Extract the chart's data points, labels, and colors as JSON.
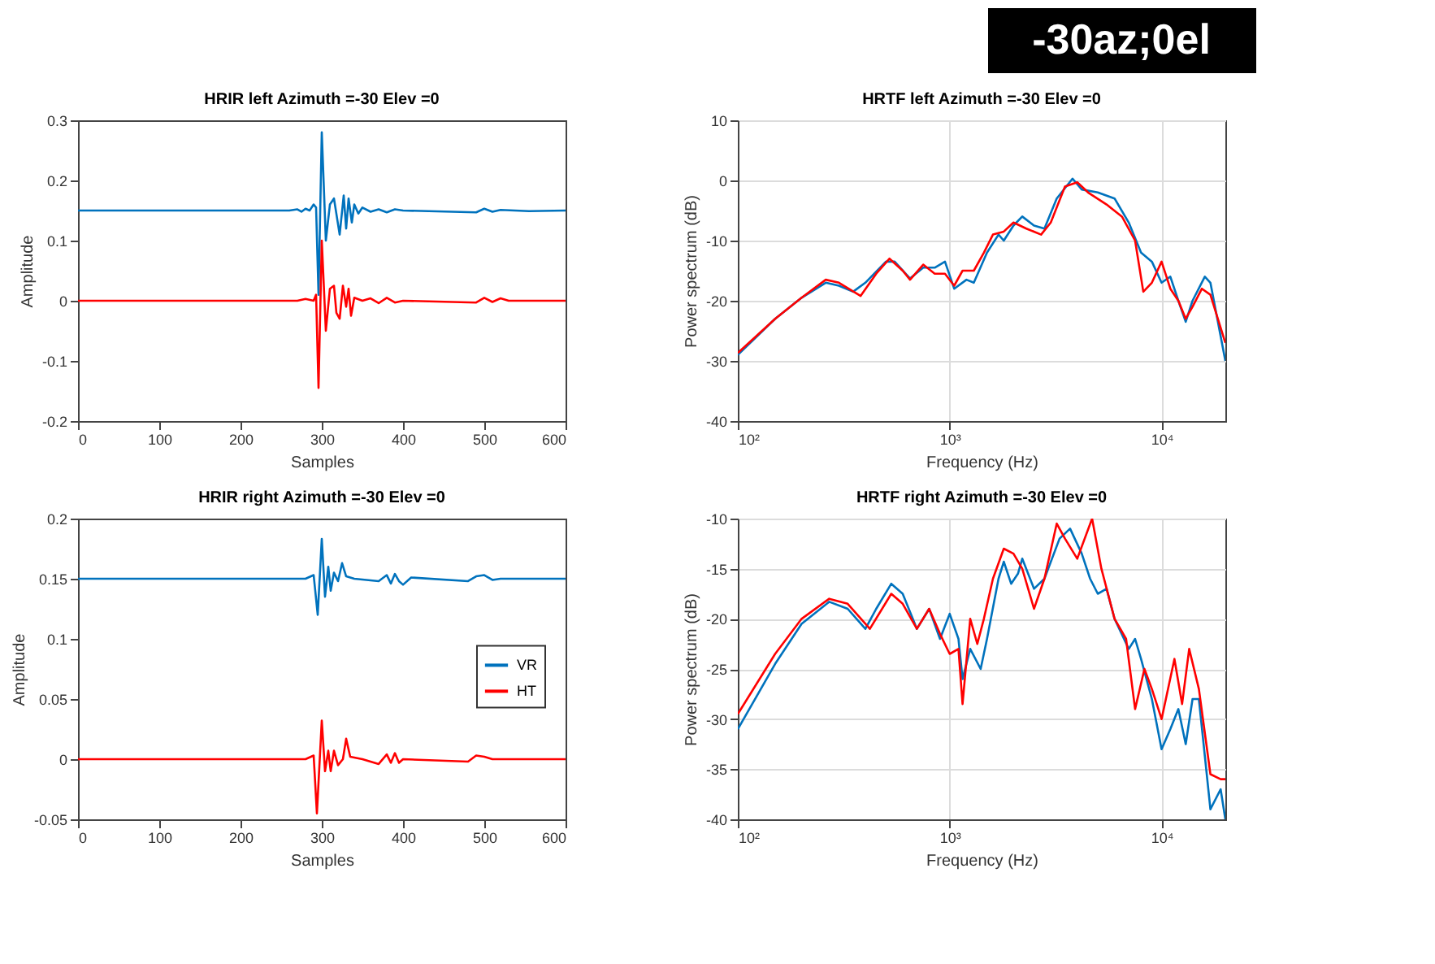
{
  "chart_data": [
    {
      "type": "line",
      "title": "HRIR left Azimuth =-30 Elev =0",
      "xlabel": "Samples",
      "ylabel": "Amplitude",
      "xlim": [
        0,
        600
      ],
      "xticks": [
        0,
        100,
        200,
        300,
        400,
        500,
        600
      ],
      "ylim": [
        -0.2,
        0.3
      ],
      "yticks": [
        -0.2,
        -0.1,
        0,
        0.1,
        0.2,
        0.3
      ],
      "grid": false,
      "legend": false,
      "marker": "none",
      "line_style": "solid",
      "series": [
        {
          "color": "#0072bd",
          "x": [
            0,
            260,
            270,
            275,
            280,
            285,
            290,
            293,
            296,
            300,
            305,
            310,
            315,
            322,
            327,
            330,
            333,
            337,
            340,
            345,
            350,
            360,
            370,
            380,
            390,
            400,
            490,
            500,
            510,
            520,
            555,
            600
          ],
          "values": [
            0.15,
            0.15,
            0.152,
            0.148,
            0.153,
            0.15,
            0.16,
            0.155,
            0.01,
            0.28,
            0.1,
            0.16,
            0.17,
            0.11,
            0.175,
            0.12,
            0.17,
            0.13,
            0.16,
            0.145,
            0.155,
            0.148,
            0.152,
            0.147,
            0.152,
            0.15,
            0.147,
            0.153,
            0.148,
            0.151,
            0.149,
            0.15
          ]
        },
        {
          "color": "#ff0000",
          "x": [
            0,
            270,
            280,
            290,
            293,
            296,
            300,
            305,
            310,
            315,
            318,
            322,
            326,
            330,
            333,
            336,
            340,
            350,
            360,
            370,
            380,
            390,
            400,
            490,
            500,
            510,
            520,
            530,
            600
          ],
          "values": [
            0,
            0,
            0.003,
            0,
            0.01,
            -0.145,
            0.1,
            -0.05,
            0.02,
            0.025,
            -0.02,
            -0.03,
            0.025,
            -0.01,
            0.02,
            -0.025,
            0.005,
            0,
            0.004,
            -0.004,
            0.005,
            -0.003,
            0,
            -0.003,
            0.005,
            -0.002,
            0.004,
            0,
            0
          ]
        }
      ]
    },
    {
      "type": "line",
      "title": "HRTF left Azimuth =-30 Elev =0",
      "annotations": [
        "-30az;0el"
      ],
      "xlabel": "Frequency (Hz)",
      "ylabel": "Power spectrum (dB)",
      "log": "x",
      "xlim": [
        100,
        20000
      ],
      "xticks": [
        {
          "value": 100,
          "label": "10²"
        },
        {
          "value": 1000,
          "label": "10³"
        },
        {
          "value": 10000,
          "label": "10⁴"
        }
      ],
      "ylim": [
        -40,
        10
      ],
      "yticks": [
        -40,
        -30,
        -20,
        -10,
        0,
        10
      ],
      "grid": true,
      "legend": false,
      "marker": "none",
      "line_style": "solid",
      "series": [
        {
          "color": "#0072bd",
          "x": [
            100,
            150,
            200,
            260,
            300,
            350,
            400,
            500,
            550,
            650,
            750,
            850,
            950,
            1050,
            1200,
            1300,
            1500,
            1700,
            1800,
            2000,
            2200,
            2500,
            2800,
            3200,
            3800,
            4200,
            5000,
            6000,
            7000,
            8000,
            9000,
            10000,
            11000,
            12000,
            13000,
            14000,
            16000,
            17000,
            20000
          ],
          "values": [
            -29,
            -23,
            -19.5,
            -17,
            -17.5,
            -18.5,
            -17,
            -13.5,
            -13.5,
            -16.3,
            -14.5,
            -14.5,
            -13.5,
            -18,
            -16.5,
            -17,
            -12,
            -9,
            -10,
            -7.5,
            -6,
            -7.5,
            -8,
            -3,
            0.3,
            -1.5,
            -2,
            -3,
            -7,
            -12,
            -13.5,
            -17,
            -16,
            -20,
            -23.5,
            -20,
            -16,
            -17,
            -30
          ]
        },
        {
          "color": "#ff0000",
          "x": [
            100,
            150,
            200,
            260,
            300,
            380,
            450,
            520,
            600,
            650,
            750,
            850,
            950,
            1050,
            1150,
            1300,
            1450,
            1600,
            1800,
            2000,
            2300,
            2700,
            3000,
            3500,
            4000,
            4500,
            5500,
            6500,
            7500,
            8200,
            9000,
            10000,
            11000,
            12000,
            13000,
            14000,
            15500,
            17000,
            20000
          ],
          "values": [
            -28.7,
            -23,
            -19.5,
            -16.5,
            -17,
            -19.2,
            -15.5,
            -13,
            -15,
            -16.5,
            -14,
            -15.5,
            -15.5,
            -17.5,
            -15,
            -15,
            -12,
            -9,
            -8.5,
            -7,
            -8,
            -9,
            -7,
            -1,
            -0.3,
            -2,
            -4,
            -6,
            -10,
            -18.5,
            -17,
            -13.5,
            -18,
            -20,
            -23,
            -21,
            -18,
            -19,
            -27
          ]
        }
      ]
    },
    {
      "type": "line",
      "title": "HRIR right Azimuth =-30 Elev =0",
      "xlabel": "Samples",
      "ylabel": "Amplitude",
      "xlim": [
        0,
        600
      ],
      "xticks": [
        0,
        100,
        200,
        300,
        400,
        500,
        600
      ],
      "ylim": [
        -0.05,
        0.2
      ],
      "yticks": [
        -0.05,
        0,
        0.05,
        0.1,
        0.15,
        0.2
      ],
      "grid": false,
      "legend": "right",
      "marker": "none",
      "line_style": "solid",
      "series": [
        {
          "name": "VR",
          "color": "#0072bd",
          "x": [
            0,
            280,
            290,
            295,
            300,
            304,
            308,
            311,
            315,
            320,
            325,
            330,
            340,
            370,
            380,
            385,
            390,
            395,
            400,
            410,
            480,
            490,
            500,
            510,
            520,
            600
          ],
          "values": [
            0.15,
            0.15,
            0.153,
            0.12,
            0.183,
            0.135,
            0.16,
            0.14,
            0.155,
            0.148,
            0.163,
            0.152,
            0.15,
            0.148,
            0.153,
            0.146,
            0.154,
            0.148,
            0.145,
            0.151,
            0.148,
            0.152,
            0.153,
            0.149,
            0.15,
            0.15
          ]
        },
        {
          "name": "HT",
          "color": "#ff0000",
          "x": [
            0,
            280,
            290,
            294,
            300,
            304,
            308,
            311,
            315,
            320,
            326,
            330,
            335,
            350,
            370,
            380,
            385,
            390,
            395,
            400,
            480,
            490,
            500,
            510,
            600
          ],
          "values": [
            0,
            0,
            0.003,
            -0.045,
            0.032,
            -0.01,
            0.007,
            -0.01,
            0.007,
            -0.005,
            0,
            0.017,
            0.002,
            0,
            -0.004,
            0.004,
            -0.003,
            0.005,
            -0.003,
            0,
            -0.002,
            0.003,
            0.002,
            0,
            0
          ]
        }
      ]
    },
    {
      "type": "line",
      "title": "HRTF right Azimuth =-30 Elev =0",
      "xlabel": "Frequency (Hz)",
      "ylabel": "Power spectrum (dB)",
      "log": "x",
      "xlim": [
        100,
        20000
      ],
      "xticks": [
        {
          "value": 100,
          "label": "10²"
        },
        {
          "value": 1000,
          "label": "10³"
        },
        {
          "value": 10000,
          "label": "10⁴"
        }
      ],
      "ylim": [
        -40,
        -10
      ],
      "yticks": [
        -40,
        -35,
        -30,
        -25,
        -20,
        -15,
        -10
      ],
      "grid": true,
      "legend": false,
      "marker": "none",
      "line_style": "solid",
      "series": [
        {
          "color": "#0072bd",
          "x": [
            100,
            150,
            200,
            270,
            330,
            400,
            450,
            530,
            600,
            700,
            800,
            900,
            1000,
            1100,
            1150,
            1250,
            1400,
            1500,
            1700,
            1800,
            1950,
            2100,
            2200,
            2500,
            2800,
            3300,
            3700,
            4200,
            4600,
            5000,
            5500,
            6000,
            7000,
            7500,
            8000,
            9000,
            10000,
            11000,
            12000,
            13000,
            14000,
            15000,
            17000,
            19000,
            20000
          ],
          "values": [
            -31,
            -24.5,
            -20.5,
            -18.3,
            -19,
            -21,
            -19,
            -16.5,
            -17.5,
            -21,
            -19,
            -22,
            -19.5,
            -22,
            -26,
            -23,
            -25,
            -22,
            -16,
            -14.3,
            -16.5,
            -15.5,
            -14,
            -17,
            -16,
            -12,
            -11,
            -13.5,
            -16,
            -17.5,
            -17,
            -20,
            -23,
            -22,
            -24,
            -28,
            -33,
            -31,
            -29,
            -32.5,
            -28,
            -28,
            -39,
            -37,
            -40
          ]
        },
        {
          "color": "#ff0000",
          "x": [
            100,
            150,
            200,
            270,
            330,
            420,
            530,
            600,
            700,
            800,
            900,
            1000,
            1100,
            1150,
            1250,
            1350,
            1450,
            1600,
            1800,
            2000,
            2200,
            2500,
            2800,
            3200,
            3500,
            4000,
            4700,
            5200,
            6000,
            6800,
            7500,
            8300,
            9000,
            10000,
            11500,
            12500,
            13500,
            15000,
            17000,
            19000,
            20000
          ],
          "values": [
            -29.5,
            -23.5,
            -20,
            -18,
            -18.5,
            -21,
            -17.5,
            -18.5,
            -21,
            -19,
            -21.5,
            -23.5,
            -23,
            -28.5,
            -20,
            -22.5,
            -20,
            -16,
            -13,
            -13.5,
            -15,
            -19,
            -16,
            -10.5,
            -12,
            -14,
            -10,
            -15,
            -20,
            -22,
            -29,
            -25,
            -27,
            -30,
            -24,
            -28.5,
            -23,
            -27,
            -35.5,
            -36,
            -36
          ]
        }
      ]
    }
  ]
}
